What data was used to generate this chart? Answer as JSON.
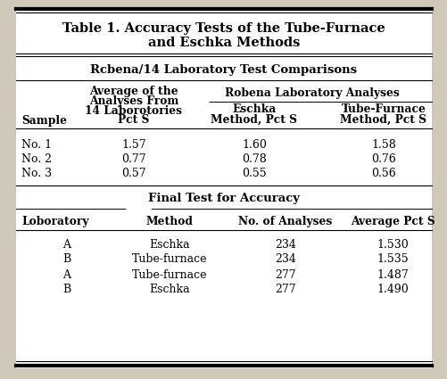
{
  "title_line1": "Table 1. Accuracy Tests of the Tube-Furnace",
  "title_line2": "and Eschka Methods",
  "outer_bg": "#d0c8b8",
  "table_bg": "#ffffff",
  "section1_header": "Rcbena/14 Laboratory Test Comparisons",
  "robena_header": "Robena Laboratory Analyses",
  "col_avg_lines": [
    "Average of the",
    "Analyses From",
    "14 Laborotories",
    "Pct S"
  ],
  "col_sample_label": "Sample",
  "col_eschka_lines": [
    "Eschka",
    "Method, Pct S"
  ],
  "col_tube_lines": [
    "Tube-Furnace",
    "Method, Pct S"
  ],
  "section1_rows": [
    [
      "No. 1",
      "1.57",
      "1.60",
      "1.58"
    ],
    [
      "No. 2",
      "0.77",
      "0.78",
      "0.76"
    ],
    [
      "No. 3",
      "0.57",
      "0.55",
      "0.56"
    ]
  ],
  "section2_header": "Final Test for Accuracy",
  "section2_col_headers": [
    "Loboratory",
    "Method",
    "No. of Analyses",
    "Average Pct S"
  ],
  "section2_rows": [
    [
      "A",
      "Eschka",
      "234",
      "1.530"
    ],
    [
      "B",
      "Tube-furnace",
      "234",
      "1.535"
    ],
    [
      "A",
      "Tube-furnace",
      "277",
      "1.487"
    ],
    [
      "B",
      "Eschka",
      "277",
      "1.490"
    ]
  ],
  "font_family": "DejaVu Serif",
  "title_fontsize": 10.5,
  "section_hdr_fontsize": 9.5,
  "col_hdr_fontsize": 8.8,
  "body_fontsize": 9.0
}
